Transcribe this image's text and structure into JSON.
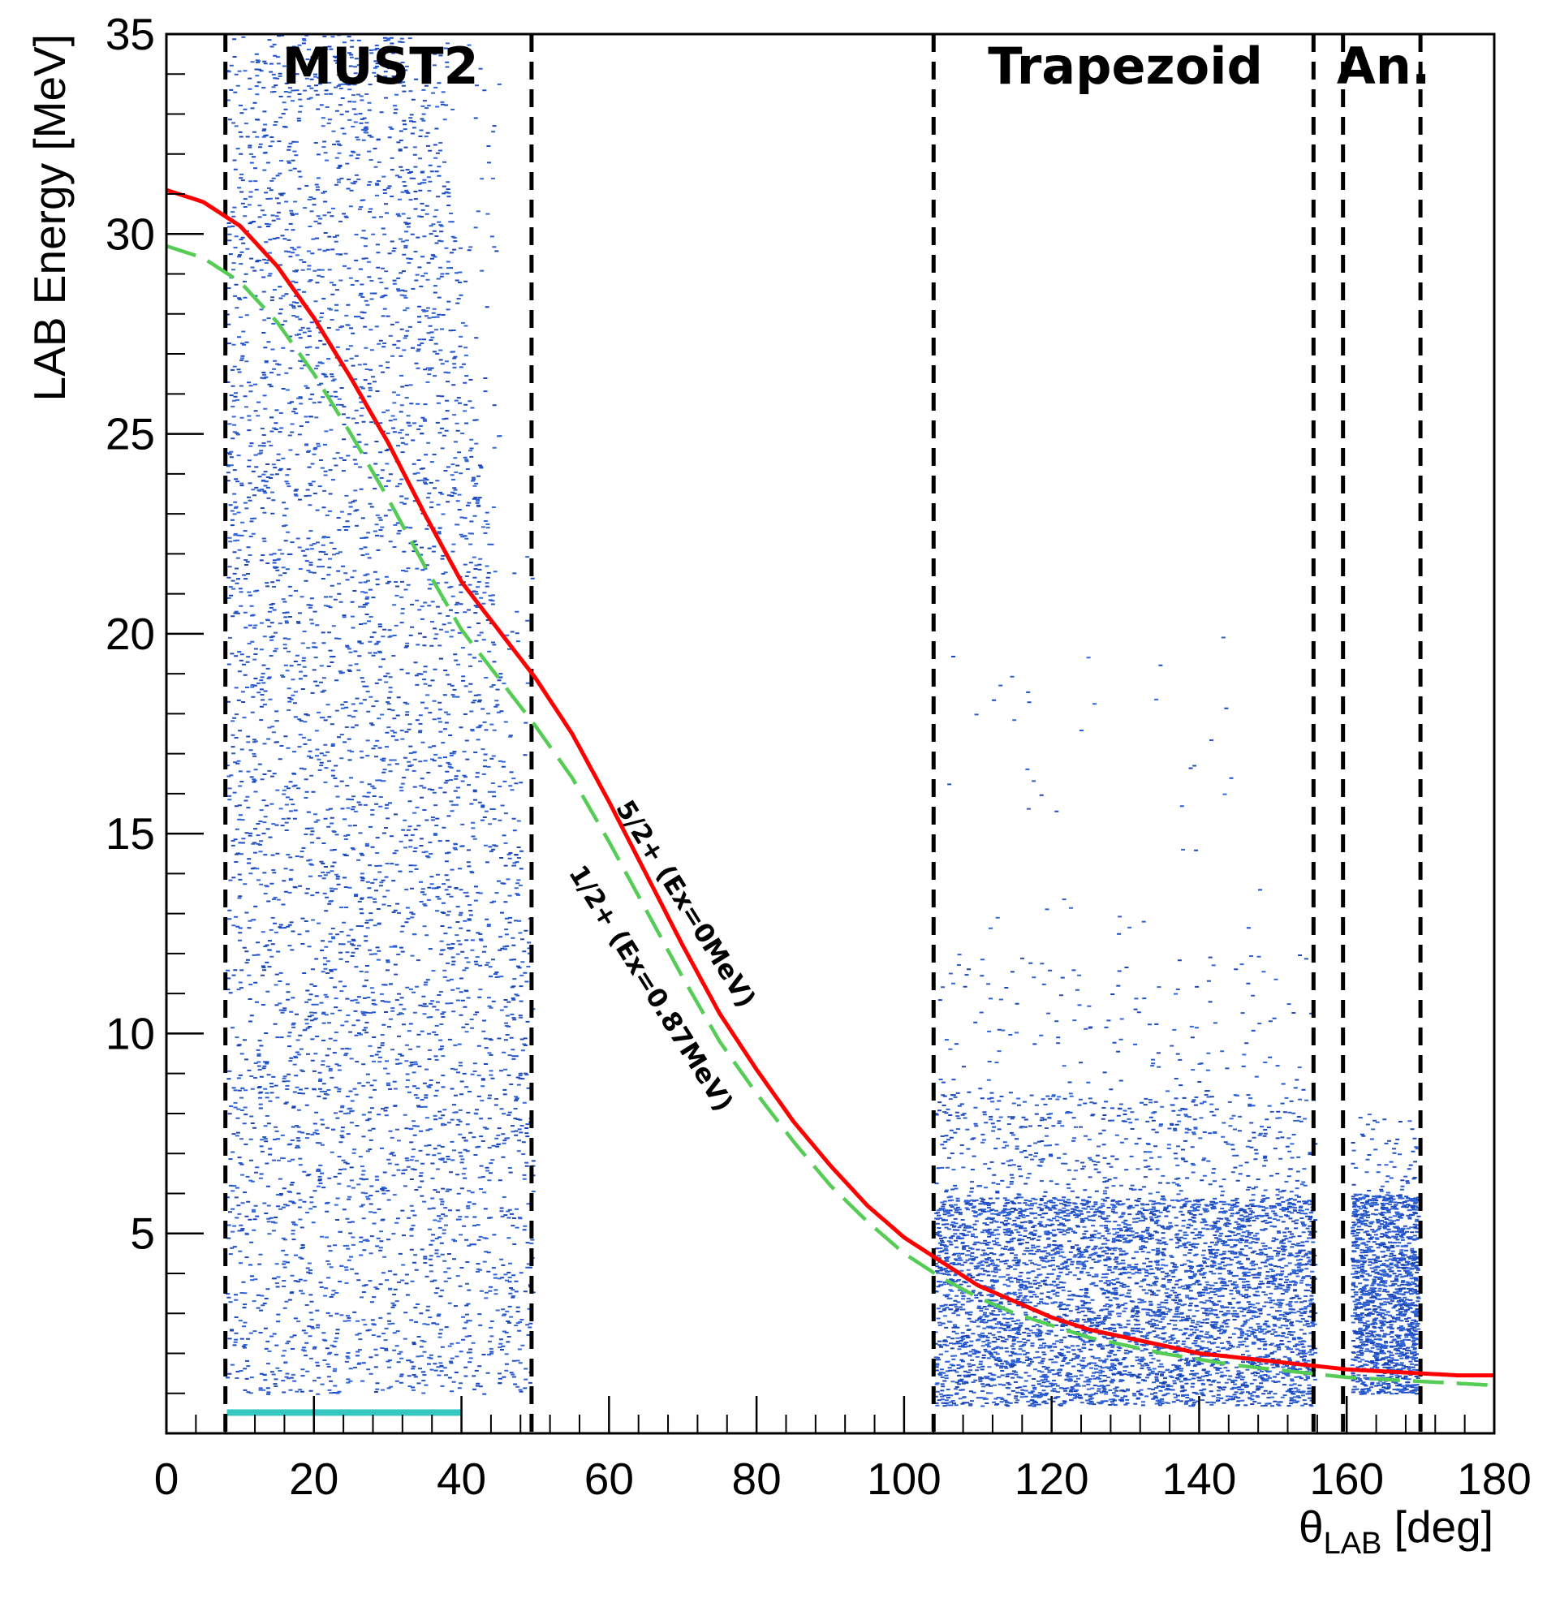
{
  "chart_data": {
    "type": "scatter",
    "title": "",
    "xlabel": "θ",
    "xlabel_sub": "LAB",
    "xlabel_unit": " [deg]",
    "ylabel": "LAB Energy [MeV]",
    "xlim": [
      0,
      180
    ],
    "ylim": [
      0,
      35
    ],
    "x_ticks": [
      0,
      20,
      40,
      60,
      80,
      100,
      120,
      140,
      160,
      180
    ],
    "y_ticks": [
      5,
      10,
      15,
      20,
      25,
      30,
      35
    ],
    "grid": false,
    "point_color": "#1f4fc8",
    "detector_regions": [
      {
        "name": "MUST2",
        "x_range": [
          8,
          49.5
        ],
        "label_x": 29
      },
      {
        "name": "Trapezoid",
        "x_range": [
          104,
          155.5
        ],
        "label_x": 130
      },
      {
        "name": "An.",
        "x_range": [
          159.5,
          170
        ],
        "label_x": 165
      }
    ],
    "boundary_lines_x": [
      8,
      49.5,
      104,
      155.5,
      159.5,
      170
    ],
    "series": [
      {
        "name": "5/2+ (Ex=0MeV)",
        "color": "#ff0000",
        "style": "solid",
        "x": [
          0,
          5,
          10,
          15,
          20,
          25,
          30,
          35,
          40,
          45,
          50,
          55,
          60,
          65,
          70,
          75,
          80,
          85,
          90,
          95,
          100,
          105,
          110,
          115,
          120,
          125,
          130,
          135,
          140,
          145,
          150,
          155,
          160,
          165,
          170,
          175,
          180
        ],
        "y": [
          31.1,
          30.8,
          30.2,
          29.2,
          27.9,
          26.4,
          24.8,
          23.0,
          21.3,
          20.1,
          18.9,
          17.5,
          15.8,
          14.0,
          12.2,
          10.5,
          9.1,
          7.8,
          6.7,
          5.7,
          4.9,
          4.3,
          3.7,
          3.3,
          2.9,
          2.6,
          2.4,
          2.2,
          2.0,
          1.9,
          1.8,
          1.7,
          1.6,
          1.55,
          1.5,
          1.45,
          1.45
        ]
      },
      {
        "name": "1/2+ (Ex=0.87MeV)",
        "color": "#55cc55",
        "style": "dashed",
        "x": [
          0,
          5,
          10,
          15,
          20,
          25,
          30,
          35,
          40,
          45,
          50,
          55,
          60,
          65,
          70,
          75,
          80,
          85,
          90,
          95,
          100,
          105,
          110,
          115,
          120,
          125,
          130,
          135,
          140,
          145,
          150,
          155,
          160,
          165,
          170,
          175,
          180
        ],
        "y": [
          29.7,
          29.4,
          28.8,
          27.8,
          26.5,
          25.0,
          23.4,
          21.7,
          20.1,
          18.9,
          17.7,
          16.4,
          14.8,
          13.1,
          11.4,
          9.8,
          8.5,
          7.3,
          6.2,
          5.3,
          4.5,
          3.9,
          3.4,
          3.0,
          2.7,
          2.4,
          2.2,
          2.0,
          1.85,
          1.7,
          1.6,
          1.5,
          1.4,
          1.35,
          1.3,
          1.25,
          1.2
        ]
      }
    ]
  }
}
